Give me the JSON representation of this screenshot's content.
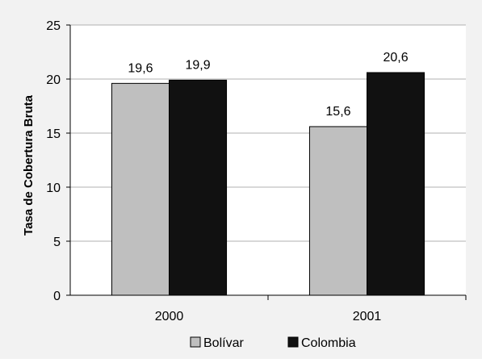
{
  "chart_data": {
    "type": "bar",
    "categories": [
      "2000",
      "2001"
    ],
    "series": [
      {
        "name": "Bolívar",
        "values": [
          19.6,
          15.6
        ],
        "color": "#bfbfbf"
      },
      {
        "name": "Colombia",
        "values": [
          19.9,
          20.6
        ],
        "color": "#111111"
      }
    ],
    "data_labels": [
      [
        "19,6",
        "15,6"
      ],
      [
        "19,9",
        "20,6"
      ]
    ],
    "ylabel": "Tasa de Cobertura Bruta",
    "xlabel": "",
    "ylim": [
      0,
      25
    ],
    "yticks": [
      "0",
      "5",
      "10",
      "15",
      "20",
      "25"
    ],
    "grid": true,
    "legend_position": "bottom"
  },
  "colors": {
    "background": "#f2f2f2",
    "plot_background": "#ffffff",
    "gridline": "#b0b0b0"
  }
}
